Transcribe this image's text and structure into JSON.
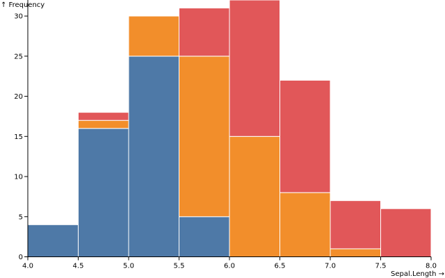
{
  "chart_data": {
    "type": "bar",
    "stacked": true,
    "xlabel": "Sepal.Length →",
    "ylabel": "↑ Frequency",
    "x_bins": [
      4.0,
      4.5,
      5.0,
      5.5,
      6.0,
      6.5,
      7.0,
      7.5,
      8.0
    ],
    "x_tick_labels": [
      "4.0",
      "4.5",
      "5.0",
      "5.5",
      "6.0",
      "6.5",
      "7.0",
      "7.5",
      "8.0"
    ],
    "y_ticks": [
      0,
      5,
      10,
      15,
      20,
      25,
      30
    ],
    "ylim": [
      0,
      32
    ],
    "grid": false,
    "series": [
      {
        "color": "#4e79a7",
        "values": [
          4,
          16,
          25,
          5,
          0,
          0,
          0,
          0
        ]
      },
      {
        "color": "#f28e2b",
        "values": [
          0,
          1,
          5,
          20,
          15,
          8,
          1,
          0
        ]
      },
      {
        "color": "#e15759",
        "values": [
          0,
          1,
          0,
          6,
          17,
          14,
          6,
          6
        ]
      }
    ]
  }
}
